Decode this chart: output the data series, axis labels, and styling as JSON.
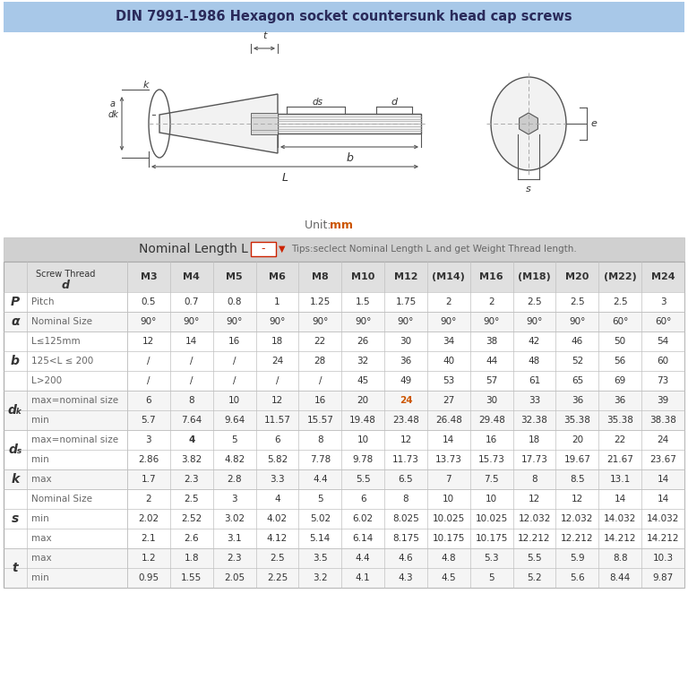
{
  "title": "DIN 7991-1986 Hexagon socket countersunk head cap screws",
  "title_bg": "#a8c8e8",
  "unit_text_prefix": "Unit: ",
  "unit_text_mm": "mm",
  "nominal_length_label": "Nominal Length L",
  "tips_text": "Tips:seclect Nominal Length L and get Weight Thread length.",
  "col_headers": [
    "M3",
    "M4",
    "M5",
    "M6",
    "M8",
    "M10",
    "M12",
    "(M14)",
    "M16",
    "(M18)",
    "M20",
    "(M22)",
    "M24"
  ],
  "row_groups": [
    {
      "symbol": "P",
      "rows": [
        {
          "label": "Pitch",
          "values": [
            "0.5",
            "0.7",
            "0.8",
            "1",
            "1.25",
            "1.5",
            "1.75",
            "2",
            "2",
            "2.5",
            "2.5",
            "2.5",
            "3"
          ]
        }
      ]
    },
    {
      "symbol": "α",
      "rows": [
        {
          "label": "Nominal Size",
          "values": [
            "90°",
            "90°",
            "90°",
            "90°",
            "90°",
            "90°",
            "90°",
            "90°",
            "90°",
            "90°",
            "90°",
            "60°",
            "60°"
          ]
        }
      ]
    },
    {
      "symbol": "b",
      "rows": [
        {
          "label": "L≤125mm",
          "values": [
            "12",
            "14",
            "16",
            "18",
            "22",
            "26",
            "30",
            "34",
            "38",
            "42",
            "46",
            "50",
            "54"
          ]
        },
        {
          "label": "125<L ≤ 200",
          "values": [
            "/",
            "/",
            "/",
            "24",
            "28",
            "32",
            "36",
            "40",
            "44",
            "48",
            "52",
            "56",
            "60"
          ]
        },
        {
          "label": "L>200",
          "values": [
            "/",
            "/",
            "/",
            "/",
            "/",
            "45",
            "49",
            "53",
            "57",
            "61",
            "65",
            "69",
            "73"
          ]
        }
      ]
    },
    {
      "symbol": "dₖ",
      "rows": [
        {
          "label": "max=nominal size",
          "values": [
            "6",
            "8",
            "10",
            "12",
            "16",
            "20",
            "24",
            "27",
            "30",
            "33",
            "36",
            "36",
            "39"
          ],
          "highlight_idx": 6
        },
        {
          "label": "min",
          "values": [
            "5.7",
            "7.64",
            "9.64",
            "11.57",
            "15.57",
            "19.48",
            "23.48",
            "26.48",
            "29.48",
            "32.38",
            "35.38",
            "35.38",
            "38.38"
          ]
        }
      ]
    },
    {
      "symbol": "dₛ",
      "rows": [
        {
          "label": "max=nominal size",
          "values": [
            "3",
            "4",
            "5",
            "6",
            "8",
            "10",
            "12",
            "14",
            "16",
            "18",
            "20",
            "22",
            "24"
          ],
          "bold_idx": 1
        },
        {
          "label": "min",
          "values": [
            "2.86",
            "3.82",
            "4.82",
            "5.82",
            "7.78",
            "9.78",
            "11.73",
            "13.73",
            "15.73",
            "17.73",
            "19.67",
            "21.67",
            "23.67"
          ]
        }
      ]
    },
    {
      "symbol": "k",
      "rows": [
        {
          "label": "max",
          "values": [
            "1.7",
            "2.3",
            "2.8",
            "3.3",
            "4.4",
            "5.5",
            "6.5",
            "7",
            "7.5",
            "8",
            "8.5",
            "13.1",
            "14"
          ]
        }
      ]
    },
    {
      "symbol": "s",
      "rows": [
        {
          "label": "Nominal Size",
          "values": [
            "2",
            "2.5",
            "3",
            "4",
            "5",
            "6",
            "8",
            "10",
            "10",
            "12",
            "12",
            "14",
            "14"
          ]
        },
        {
          "label": "min",
          "values": [
            "2.02",
            "2.52",
            "3.02",
            "4.02",
            "5.02",
            "6.02",
            "8.025",
            "10.025",
            "10.025",
            "12.032",
            "12.032",
            "14.032",
            "14.032"
          ]
        },
        {
          "label": "max",
          "values": [
            "2.1",
            "2.6",
            "3.1",
            "4.12",
            "5.14",
            "6.14",
            "8.175",
            "10.175",
            "10.175",
            "12.212",
            "12.212",
            "14.212",
            "14.212"
          ]
        }
      ]
    },
    {
      "symbol": "t",
      "rows": [
        {
          "label": "max",
          "values": [
            "1.2",
            "1.8",
            "2.3",
            "2.5",
            "3.5",
            "4.4",
            "4.6",
            "4.8",
            "5.3",
            "5.5",
            "5.9",
            "8.8",
            "10.3"
          ]
        },
        {
          "label": "min",
          "values": [
            "0.95",
            "1.55",
            "2.05",
            "2.25",
            "3.2",
            "4.1",
            "4.3",
            "4.5",
            "5",
            "5.2",
            "5.6",
            "8.44",
            "9.87"
          ]
        }
      ]
    }
  ],
  "title_bar_bg": "#a8c8e8",
  "nominal_bar_bg": "#d0d0d0",
  "header_bg": "#e0e0e0",
  "row_bg_even": "#ffffff",
  "row_bg_odd": "#f5f5f5",
  "border_color": "#c0c0c0",
  "text_dark": "#333333",
  "text_gray": "#666666",
  "text_orange": "#cc5500",
  "text_red": "#cc2200"
}
